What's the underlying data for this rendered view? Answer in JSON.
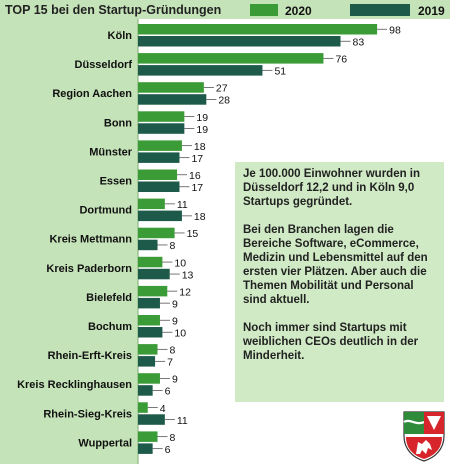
{
  "colors": {
    "series_2020": "#3a9b37",
    "series_2019": "#1d5a4a",
    "panel_bg": "#cfeac4",
    "title_bg": "#c5e3b8"
  },
  "chart_data": {
    "type": "bar",
    "orientation": "horizontal",
    "title": "TOP 15 bei den Startup-Gründungen",
    "categories": [
      "Köln",
      "Düsseldorf",
      "Region Aachen",
      "Bonn",
      "Münster",
      "Essen",
      "Dortmund",
      "Kreis Mettmann",
      "Kreis Paderborn",
      "Bielefeld",
      "Bochum",
      "Rhein-Erft-Kreis",
      "Kreis Recklinghausen",
      "Rhein-Sieg-Kreis",
      "Wuppertal"
    ],
    "series": [
      {
        "name": "2020",
        "values": [
          98,
          76,
          27,
          19,
          18,
          16,
          11,
          15,
          10,
          12,
          9,
          8,
          9,
          4,
          8
        ]
      },
      {
        "name": "2019",
        "values": [
          83,
          51,
          28,
          19,
          17,
          17,
          18,
          8,
          13,
          9,
          10,
          7,
          6,
          11,
          6
        ]
      }
    ],
    "xlim": [
      0,
      100
    ],
    "legend_position": "top-right",
    "grid": false,
    "data_labels": true
  },
  "notes": [
    "Je 100.000 Einwohner wurden in Düsseldorf 12,2 und in Köln 9,0 Startups gegründet.",
    "Bei den Branchen lagen die Bereiche Software, eCommerce, Medizin und Lebensmittel auf den ersten vier Plätzen. Aber auch die Themen Mobilität und Personal sind aktuell.",
    "Noch immer sind Startups mit weiblichen CEOs deutlich in der Minderheit."
  ],
  "crest_icon": "nrw-coat-of-arms-icon"
}
